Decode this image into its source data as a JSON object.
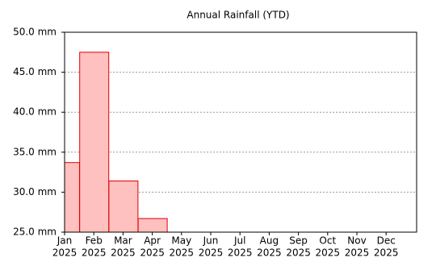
{
  "chart_data": {
    "type": "bar",
    "title": "Annual Rainfall (YTD)",
    "categories": [
      [
        "Jan",
        "2025"
      ],
      [
        "Feb",
        "2025"
      ],
      [
        "Mar",
        "2025"
      ],
      [
        "Apr",
        "2025"
      ],
      [
        "May",
        "2025"
      ],
      [
        "Jun",
        "2025"
      ],
      [
        "Jul",
        "2025"
      ],
      [
        "Aug",
        "2025"
      ],
      [
        "Sep",
        "2025"
      ],
      [
        "Oct",
        "2025"
      ],
      [
        "Nov",
        "2025"
      ],
      [
        "Dec",
        "2025"
      ]
    ],
    "values": [
      33.7,
      47.5,
      31.4,
      26.7,
      null,
      null,
      null,
      null,
      null,
      null,
      null,
      null
    ],
    "color": "#ffc0c0",
    "edge_color": "#e00000",
    "ylim": [
      25,
      50
    ],
    "yticks": [
      {
        "value": 25,
        "label": "25.0 mm"
      },
      {
        "value": 30,
        "label": "30.0 mm"
      },
      {
        "value": 35,
        "label": "35.0 mm"
      },
      {
        "value": 40,
        "label": "40.0 mm"
      },
      {
        "value": 45,
        "label": "45.0 mm"
      },
      {
        "value": 50,
        "label": "50.0 mm"
      }
    ],
    "grid": true
  }
}
